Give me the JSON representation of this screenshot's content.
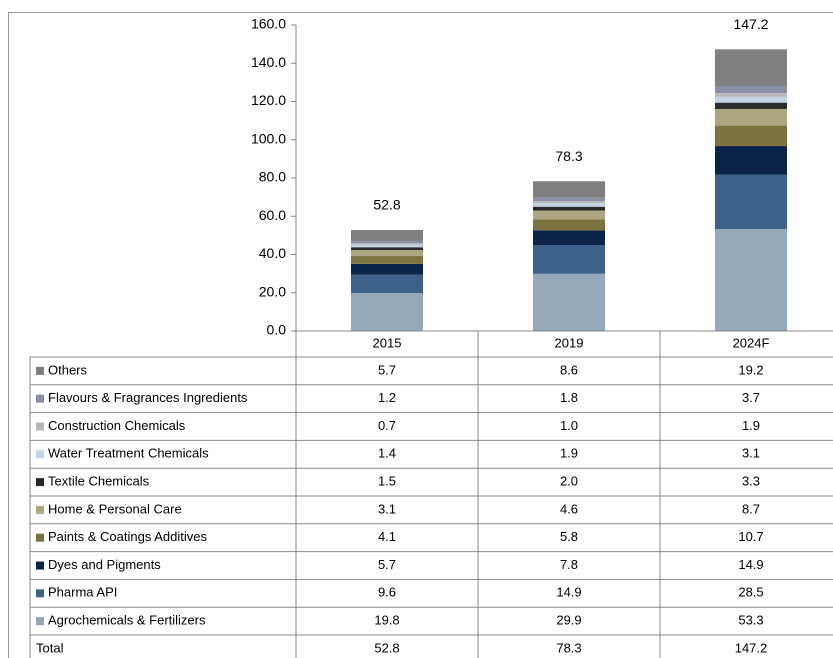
{
  "chart_data": {
    "type": "stacked_bar",
    "categories": [
      "2015",
      "2019",
      "2024F"
    ],
    "series": [
      {
        "name": "Agrochemicals & Fertilizers",
        "color": "#95a9bb",
        "values": [
          19.8,
          29.9,
          53.3
        ],
        "value_labels": [
          "19.8",
          "29.9",
          "53.3"
        ]
      },
      {
        "name": "Pharma API",
        "color": "#3d6189",
        "values": [
          9.6,
          14.9,
          28.5
        ],
        "value_labels": [
          "9.6",
          "14.9",
          "28.5"
        ]
      },
      {
        "name": "Dyes and Pigments",
        "color": "#0b2346",
        "values": [
          5.7,
          7.8,
          14.9
        ],
        "value_labels": [
          "5.7",
          "7.8",
          "14.9"
        ]
      },
      {
        "name": "Paints & Coatings Additives",
        "color": "#7b7440",
        "values": [
          4.1,
          5.8,
          10.7
        ],
        "value_labels": [
          "4.1",
          "5.8",
          "10.7"
        ]
      },
      {
        "name": "Home & Personal Care",
        "color": "#aca681",
        "values": [
          3.1,
          4.6,
          8.7
        ],
        "value_labels": [
          "3.1",
          "4.6",
          "8.7"
        ]
      },
      {
        "name": "Textile Chemicals",
        "color": "#2a2a2a",
        "values": [
          1.5,
          2.0,
          3.3
        ],
        "value_labels": [
          "1.5",
          "2.0",
          "3.3"
        ]
      },
      {
        "name": "Water Treatment Chemicals",
        "color": "#c5d4e2",
        "values": [
          1.4,
          1.9,
          3.1
        ],
        "value_labels": [
          "1.4",
          "1.9",
          "3.1"
        ]
      },
      {
        "name": "Construction Chemicals",
        "color": "#b8b8b8",
        "values": [
          0.7,
          1.0,
          1.9
        ],
        "value_labels": [
          "0.7",
          "1.0",
          "1.9"
        ]
      },
      {
        "name": "Flavours & Fragrances Ingredients",
        "color": "#8a8fa5",
        "values": [
          1.2,
          1.8,
          3.7
        ],
        "value_labels": [
          "1.2",
          "1.8",
          "3.7"
        ]
      },
      {
        "name": "Others",
        "color": "#808080",
        "values": [
          5.7,
          8.6,
          19.2
        ],
        "value_labels": [
          "5.7",
          "8.6",
          "19.2"
        ]
      }
    ],
    "total_label": "Total",
    "totals": [
      52.8,
      78.3,
      147.2
    ],
    "ylim": [
      0,
      160
    ],
    "yticks": [
      {
        "value": 0,
        "label": "0.0"
      },
      {
        "value": 20,
        "label": "20.0"
      },
      {
        "value": 40,
        "label": "40.0"
      },
      {
        "value": 60,
        "label": "60.0"
      },
      {
        "value": 80,
        "label": "80.0"
      },
      {
        "value": 100,
        "label": "100.0"
      },
      {
        "value": 120,
        "label": "120.0"
      },
      {
        "value": 140,
        "label": "140.0"
      },
      {
        "value": 160,
        "label": "160.0"
      }
    ]
  }
}
